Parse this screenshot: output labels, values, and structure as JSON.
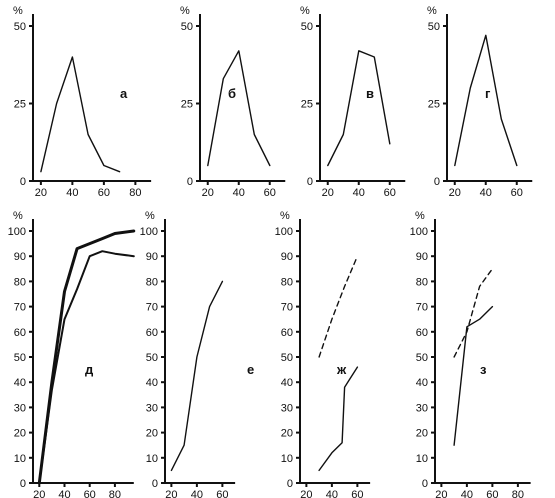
{
  "chart_data": [
    {
      "type": "line",
      "panel_label": "а",
      "y_unit": "%",
      "ylim": [
        0,
        50
      ],
      "y_ticks": [
        "0",
        "25",
        "50"
      ],
      "xlim": [
        15,
        90
      ],
      "x_ticks": [
        "20",
        "40",
        "60",
        "80"
      ],
      "series": [
        {
          "style": "solid",
          "weight": "thin",
          "x": [
            20,
            30,
            40,
            50,
            60,
            70
          ],
          "y": [
            3,
            25,
            40,
            15,
            5,
            3
          ]
        }
      ]
    },
    {
      "type": "line",
      "panel_label": "б",
      "y_unit": "%",
      "ylim": [
        0,
        50
      ],
      "y_ticks": [
        "0",
        "25",
        "50"
      ],
      "xlim": [
        15,
        70
      ],
      "x_ticks": [
        "20",
        "40",
        "60"
      ],
      "series": [
        {
          "style": "solid",
          "weight": "thin",
          "x": [
            20,
            30,
            40,
            50,
            60
          ],
          "y": [
            5,
            33,
            42,
            15,
            5
          ]
        }
      ]
    },
    {
      "type": "line",
      "panel_label": "в",
      "y_unit": "%",
      "ylim": [
        0,
        50
      ],
      "y_ticks": [
        "0",
        "25",
        "50"
      ],
      "xlim": [
        15,
        70
      ],
      "x_ticks": [
        "20",
        "40",
        "60"
      ],
      "series": [
        {
          "style": "solid",
          "weight": "thin",
          "x": [
            20,
            30,
            40,
            50,
            60
          ],
          "y": [
            5,
            15,
            42,
            40,
            12
          ]
        }
      ]
    },
    {
      "type": "line",
      "panel_label": "г",
      "y_unit": "%",
      "ylim": [
        0,
        50
      ],
      "y_ticks": [
        "0",
        "25",
        "50"
      ],
      "xlim": [
        15,
        70
      ],
      "x_ticks": [
        "20",
        "40",
        "60"
      ],
      "series": [
        {
          "style": "solid",
          "weight": "thin",
          "x": [
            20,
            30,
            40,
            50,
            60
          ],
          "y": [
            5,
            30,
            47,
            20,
            5
          ]
        }
      ]
    },
    {
      "type": "line",
      "panel_label": "д",
      "y_unit": "%",
      "ylim": [
        0,
        100
      ],
      "y_ticks": [
        "0",
        "10",
        "20",
        "30",
        "40",
        "50",
        "60",
        "70",
        "80",
        "90",
        "100"
      ],
      "xlim": [
        15,
        95
      ],
      "x_ticks": [
        "20",
        "40",
        "60",
        "80"
      ],
      "series": [
        {
          "style": "solid",
          "weight": "thick",
          "x": [
            20,
            30,
            40,
            50,
            60,
            70,
            80,
            95
          ],
          "y": [
            0,
            40,
            76,
            93,
            95,
            97,
            99,
            100
          ]
        },
        {
          "style": "solid",
          "weight": "medium",
          "x": [
            20,
            30,
            40,
            50,
            60,
            70,
            80,
            95
          ],
          "y": [
            0,
            37,
            65,
            77,
            90,
            92,
            91,
            90
          ]
        }
      ]
    },
    {
      "type": "line",
      "panel_label": "е",
      "y_unit": "%",
      "ylim": [
        0,
        100
      ],
      "y_ticks": [
        "0",
        "10",
        "20",
        "30",
        "40",
        "50",
        "60",
        "70",
        "80",
        "90",
        "100"
      ],
      "xlim": [
        15,
        70
      ],
      "x_ticks": [
        "20",
        "40",
        "60"
      ],
      "series": [
        {
          "style": "solid",
          "weight": "thin",
          "x": [
            20,
            30,
            40,
            50,
            60
          ],
          "y": [
            5,
            15,
            50,
            70,
            80
          ]
        }
      ]
    },
    {
      "type": "line",
      "panel_label": "ж",
      "y_unit": "%",
      "ylim": [
        0,
        100
      ],
      "y_ticks": [
        "0",
        "10",
        "20",
        "30",
        "40",
        "50",
        "60",
        "70",
        "80",
        "90",
        "100"
      ],
      "xlim": [
        15,
        70
      ],
      "x_ticks": [
        "20",
        "40",
        "60"
      ],
      "series": [
        {
          "style": "dashed",
          "weight": "thin",
          "x": [
            30,
            40,
            50,
            60
          ],
          "y": [
            50,
            65,
            78,
            90
          ]
        },
        {
          "style": "solid",
          "weight": "thin",
          "x": [
            30,
            40,
            48,
            50,
            60
          ],
          "y": [
            5,
            12,
            16,
            38,
            46
          ]
        }
      ]
    },
    {
      "type": "line",
      "panel_label": "з",
      "y_unit": "%",
      "ylim": [
        0,
        100
      ],
      "y_ticks": [
        "0",
        "10",
        "20",
        "30",
        "40",
        "50",
        "60",
        "70",
        "80",
        "90",
        "100"
      ],
      "xlim": [
        15,
        90
      ],
      "x_ticks": [
        "20",
        "40",
        "60",
        "80"
      ],
      "series": [
        {
          "style": "dashed",
          "weight": "thin",
          "x": [
            30,
            40,
            50,
            60
          ],
          "y": [
            50,
            60,
            78,
            85
          ]
        },
        {
          "style": "solid",
          "weight": "thin",
          "x": [
            30,
            40,
            50,
            60
          ],
          "y": [
            15,
            62,
            65,
            70
          ]
        }
      ]
    }
  ]
}
